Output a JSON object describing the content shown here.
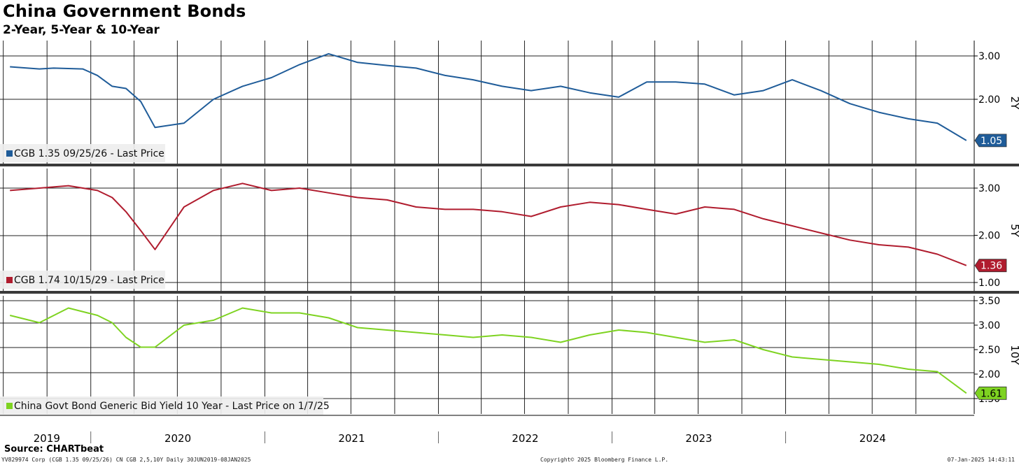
{
  "header": {
    "title": "China Government Bonds",
    "subtitle": "2-Year, 5-Year & 10-Year"
  },
  "footer": {
    "source": "Source: CHARTbeat",
    "left": "YV829974 Corp (CGB 1.35 09/25/26) CN CGB 2,5,10Y  Daily 30JUN2019-08JAN2025",
    "copyright": "Copyright© 2025 Bloomberg Finance L.P.",
    "timestamp": "07-Jan-2025 14:43:11"
  },
  "chart_data": [
    {
      "type": "line",
      "panel_label": "2Y",
      "legend": "CGB 1.35 09/25/26 - Last Price",
      "color": "#1f5c99",
      "last_value": "1.05",
      "ylim": [
        1.0,
        3.1
      ],
      "yticks": [
        "3.00",
        "2.00"
      ],
      "x": [
        "2019-07",
        "2019-09",
        "2019-10",
        "2019-12",
        "2020-01",
        "2020-02",
        "2020-03",
        "2020-04",
        "2020-05",
        "2020-07",
        "2020-09",
        "2020-11",
        "2021-01",
        "2021-03",
        "2021-05",
        "2021-07",
        "2021-09",
        "2021-11",
        "2022-01",
        "2022-03",
        "2022-05",
        "2022-07",
        "2022-09",
        "2022-11",
        "2023-01",
        "2023-03",
        "2023-05",
        "2023-07",
        "2023-09",
        "2023-11",
        "2024-01",
        "2024-03",
        "2024-05",
        "2024-07",
        "2024-09",
        "2024-11",
        "2025-01"
      ],
      "values": [
        2.75,
        2.7,
        2.72,
        2.7,
        2.55,
        2.3,
        2.25,
        1.95,
        1.35,
        1.45,
        2.0,
        2.3,
        2.5,
        2.8,
        3.05,
        2.85,
        2.78,
        2.72,
        2.55,
        2.45,
        2.3,
        2.2,
        2.3,
        2.15,
        2.05,
        2.4,
        2.4,
        2.35,
        2.1,
        2.2,
        2.45,
        2.2,
        1.9,
        1.7,
        1.55,
        1.45,
        1.05
      ]
    },
    {
      "type": "line",
      "panel_label": "5Y",
      "legend": "CGB 1.74 10/15/29 - Last Price",
      "color": "#b01c2e",
      "last_value": "1.36",
      "ylim": [
        0.9,
        3.2
      ],
      "yticks": [
        "3.00",
        "2.00",
        "1.00"
      ],
      "x": [
        "2019-07",
        "2019-09",
        "2019-11",
        "2020-01",
        "2020-02",
        "2020-03",
        "2020-04",
        "2020-05",
        "2020-07",
        "2020-09",
        "2020-11",
        "2021-01",
        "2021-03",
        "2021-05",
        "2021-07",
        "2021-09",
        "2021-11",
        "2022-01",
        "2022-03",
        "2022-05",
        "2022-07",
        "2022-09",
        "2022-11",
        "2023-01",
        "2023-03",
        "2023-05",
        "2023-07",
        "2023-09",
        "2023-11",
        "2024-01",
        "2024-03",
        "2024-05",
        "2024-07",
        "2024-09",
        "2024-11",
        "2025-01"
      ],
      "values": [
        2.95,
        3.0,
        3.05,
        2.95,
        2.8,
        2.5,
        2.1,
        1.7,
        2.6,
        2.95,
        3.1,
        2.95,
        3.0,
        2.9,
        2.8,
        2.75,
        2.6,
        2.55,
        2.55,
        2.5,
        2.4,
        2.6,
        2.7,
        2.65,
        2.55,
        2.45,
        2.6,
        2.55,
        2.35,
        2.2,
        2.05,
        1.9,
        1.8,
        1.75,
        1.6,
        1.36
      ]
    },
    {
      "type": "line",
      "panel_label": "10Y",
      "legend": "China Govt Bond Generic Bid Yield 10 Year - Last Price on 1/7/25",
      "color": "#7ed321",
      "last_value": "1.61",
      "ylim": [
        1.5,
        3.5
      ],
      "yticks": [
        "3.50",
        "3.00",
        "2.50",
        "2.00",
        "1.50"
      ],
      "x": [
        "2019-07",
        "2019-09",
        "2019-11",
        "2020-01",
        "2020-02",
        "2020-03",
        "2020-04",
        "2020-05",
        "2020-07",
        "2020-09",
        "2020-11",
        "2021-01",
        "2021-03",
        "2021-05",
        "2021-07",
        "2021-09",
        "2021-11",
        "2022-01",
        "2022-03",
        "2022-05",
        "2022-07",
        "2022-09",
        "2022-11",
        "2023-01",
        "2023-03",
        "2023-05",
        "2023-07",
        "2023-09",
        "2023-11",
        "2024-01",
        "2024-03",
        "2024-05",
        "2024-07",
        "2024-09",
        "2024-11",
        "2025-01"
      ],
      "values": [
        3.2,
        3.05,
        3.35,
        3.2,
        3.05,
        2.75,
        2.55,
        2.55,
        3.0,
        3.1,
        3.35,
        3.25,
        3.25,
        3.15,
        2.95,
        2.9,
        2.85,
        2.8,
        2.75,
        2.8,
        2.75,
        2.65,
        2.8,
        2.9,
        2.85,
        2.75,
        2.65,
        2.7,
        2.5,
        2.35,
        2.3,
        2.25,
        2.2,
        2.1,
        2.05,
        1.61
      ]
    }
  ],
  "x_axis": {
    "year_labels": [
      "2019",
      "2020",
      "2021",
      "2022",
      "2023",
      "2024"
    ],
    "start": "2019-06-30",
    "end": "2025-01-08"
  }
}
